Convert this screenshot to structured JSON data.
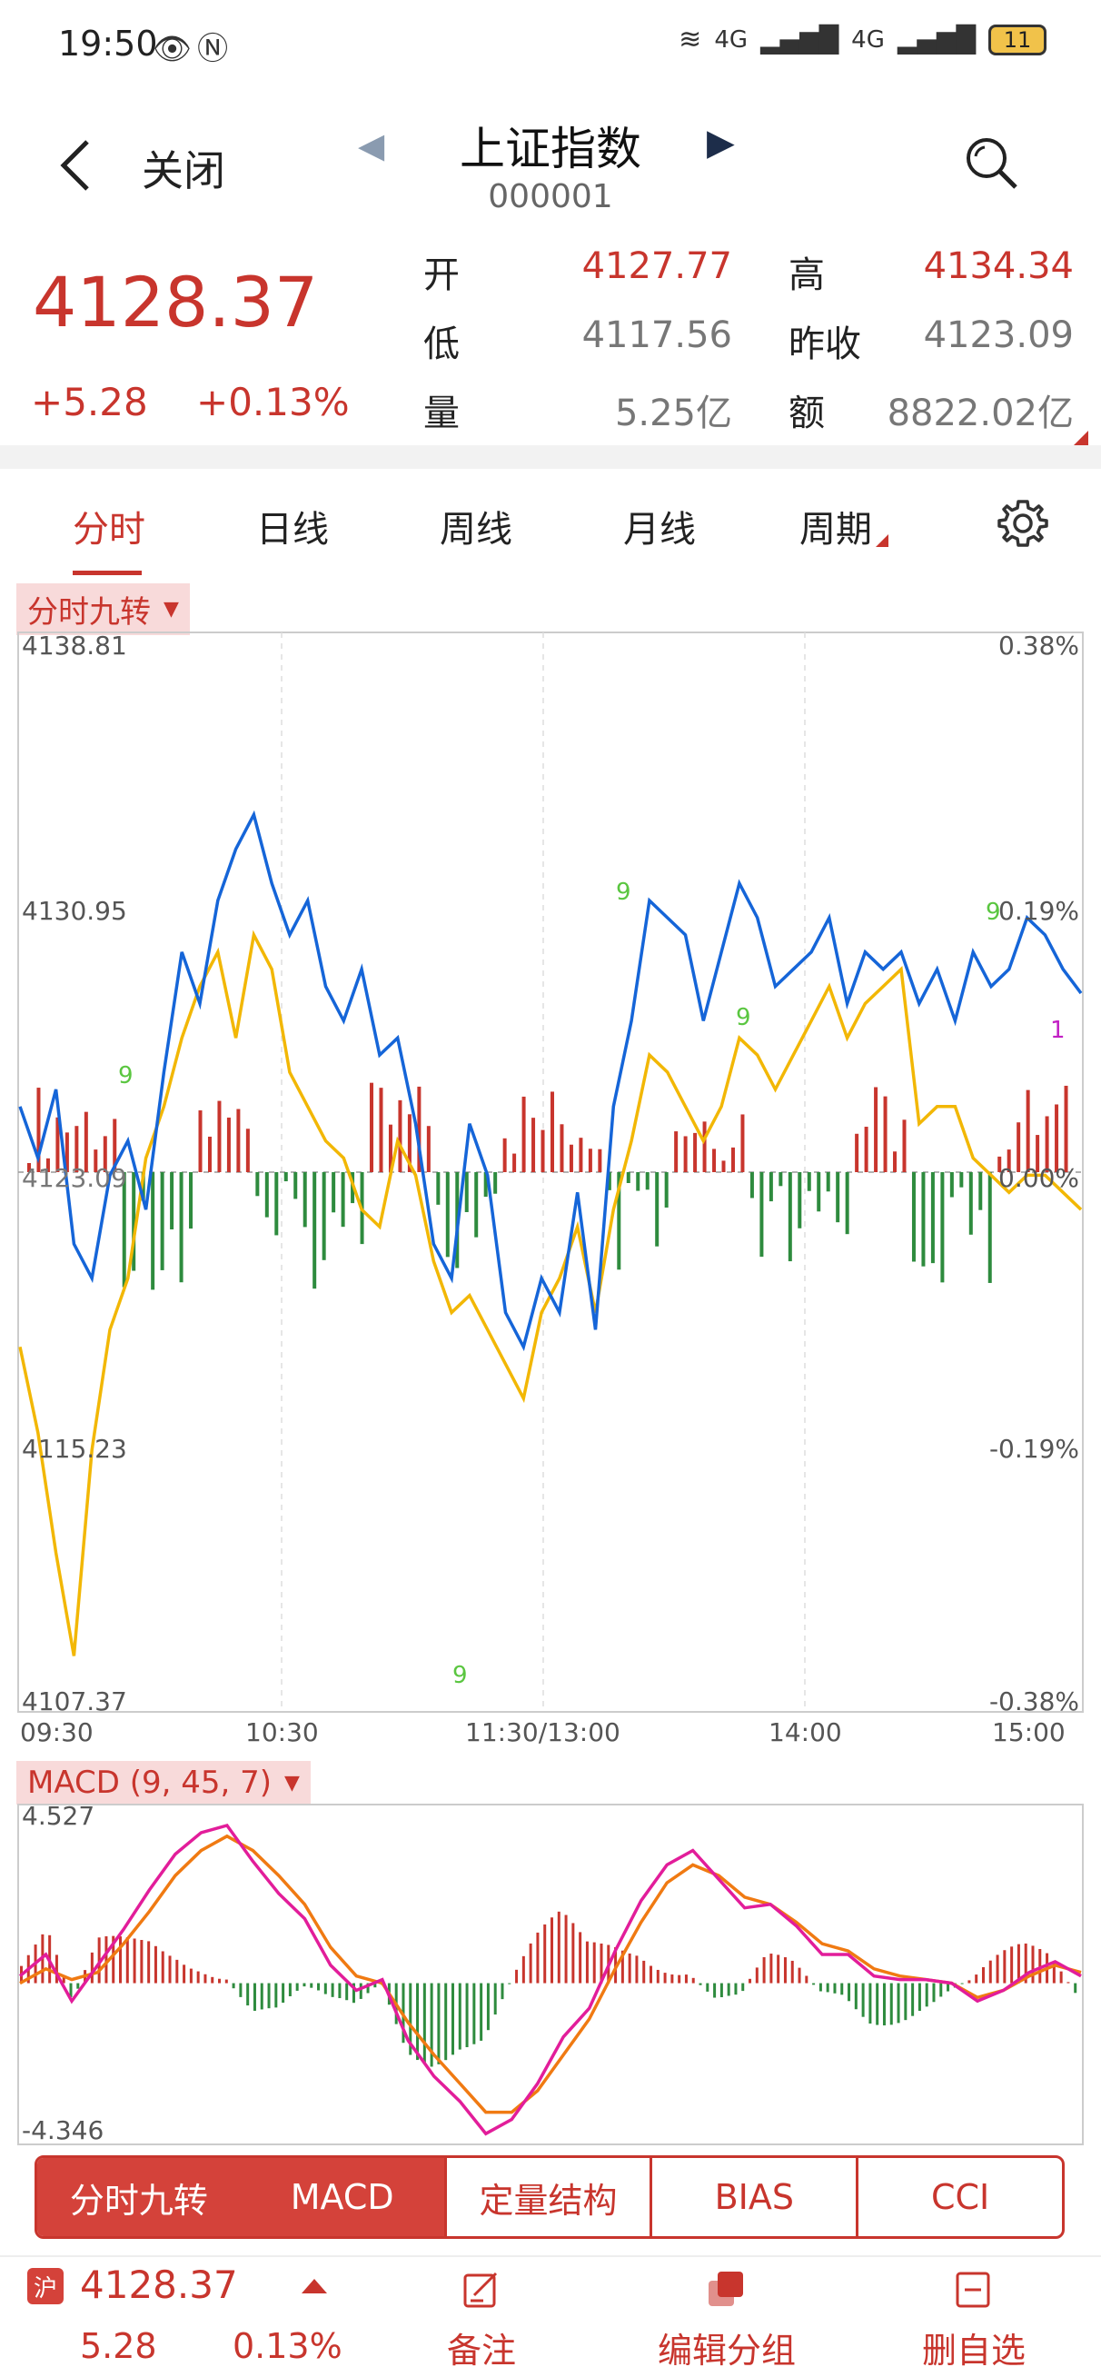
{
  "status_bar": {
    "time": "19:50",
    "battery": "11",
    "net1": "4G",
    "net2": "4G"
  },
  "header": {
    "close_label": "关闭",
    "title": "上证指数",
    "code": "000001"
  },
  "quote": {
    "price": "4128.37",
    "change": "+5.28",
    "change_pct": "+0.13%",
    "rows": [
      {
        "l1": "开",
        "v1": "4127.77",
        "l2": "高",
        "v2": "4134.34"
      },
      {
        "l1": "低",
        "v1": "4117.56",
        "l2": "昨收",
        "v2": "4123.09"
      },
      {
        "l1": "量",
        "v1": "5.25亿",
        "l2": "额",
        "v2": "8822.02亿"
      }
    ]
  },
  "tabs": [
    "分时",
    "日线",
    "周线",
    "月线",
    "周期"
  ],
  "chip_main": "分时九转",
  "chip_macd": "MACD (9, 45, 7)",
  "chart_data": [
    {
      "type": "line",
      "title": "分时",
      "y_left_ticks": [
        "4138.81",
        "4130.95",
        "4123.09",
        "4115.23",
        "4107.37"
      ],
      "y_right_ticks": [
        "0.38%",
        "0.19%",
        "0.00%",
        "-0.19%",
        "-0.38%"
      ],
      "x_ticks": [
        "09:30",
        "10:30",
        "11:30/13:00",
        "14:00",
        "15:00"
      ],
      "ylim": [
        4107.37,
        4138.81
      ],
      "series": [
        {
          "name": "price",
          "color": "#1565d8",
          "values": [
            4125.0,
            4123.5,
            4125.5,
            4121.0,
            4120.0,
            4123.0,
            4124.0,
            4122.0,
            4126.0,
            4129.5,
            4128.0,
            4131.0,
            4132.5,
            4133.5,
            4131.5,
            4130.0,
            4131.0,
            4128.5,
            4127.5,
            4129.0,
            4126.5,
            4127.0,
            4124.5,
            4121.0,
            4120.0,
            4124.5,
            4123.0,
            4119.0,
            4118.0,
            4120.0,
            4119.0,
            4122.5,
            4118.5,
            4125.0,
            4127.5,
            4131.0,
            4130.5,
            4130.0,
            4127.5,
            4129.5,
            4131.5,
            4130.5,
            4128.5,
            4129.0,
            4129.5,
            4130.5,
            4128.0,
            4129.5,
            4129.0,
            4129.5,
            4128.0,
            4129.0,
            4127.5,
            4129.5,
            4128.5,
            4129.0,
            4130.5,
            4130.0,
            4129.0,
            4128.3
          ]
        },
        {
          "name": "avg",
          "color": "#f2b705",
          "values": [
            4118.0,
            4115.5,
            4112.0,
            4109.0,
            4115.0,
            4118.5,
            4120.0,
            4123.5,
            4125.0,
            4127.0,
            4128.5,
            4129.5,
            4127.0,
            4130.0,
            4129.0,
            4126.0,
            4125.0,
            4124.0,
            4123.5,
            4122.0,
            4121.5,
            4124.0,
            4123.0,
            4120.5,
            4119.0,
            4119.5,
            4118.5,
            4117.5,
            4116.5,
            4119.0,
            4120.0,
            4121.5,
            4119.0,
            4122.0,
            4124.0,
            4126.5,
            4126.0,
            4125.0,
            4124.0,
            4125.0,
            4127.0,
            4126.5,
            4125.5,
            4126.5,
            4127.5,
            4128.5,
            4127.0,
            4128.0,
            4128.5,
            4129.0,
            4124.5,
            4125.0,
            4125.0,
            4123.5,
            4123.0,
            4122.5,
            4123.0,
            4123.0,
            4122.5,
            4122.0
          ]
        }
      ]
    },
    {
      "type": "line",
      "title": "MACD (9, 45, 7)",
      "y_ticks": [
        "4.527",
        "-4.346"
      ],
      "ylim": [
        -4.346,
        4.527
      ],
      "series": [
        {
          "name": "DIF",
          "color": "#e21d9a",
          "values": [
            0.2,
            0.8,
            -0.5,
            0.5,
            1.5,
            2.6,
            3.6,
            4.2,
            4.4,
            3.4,
            2.5,
            1.8,
            0.5,
            -0.2,
            0.1,
            -1.6,
            -2.6,
            -3.3,
            -4.2,
            -3.8,
            -2.8,
            -1.5,
            -0.7,
            0.9,
            2.3,
            3.3,
            3.7,
            2.9,
            2.1,
            2.2,
            1.6,
            0.8,
            0.8,
            0.2,
            0.1,
            0.1,
            0.0,
            -0.5,
            -0.2,
            0.3,
            0.6,
            0.2
          ]
        },
        {
          "name": "DEA",
          "color": "#f07a12",
          "values": [
            0.0,
            0.4,
            0.1,
            0.3,
            1.1,
            2.0,
            3.0,
            3.7,
            4.1,
            3.7,
            3.0,
            2.2,
            1.0,
            0.2,
            0.0,
            -1.1,
            -2.0,
            -2.8,
            -3.6,
            -3.6,
            -3.0,
            -2.0,
            -1.0,
            0.4,
            1.7,
            2.8,
            3.3,
            3.0,
            2.4,
            2.2,
            1.7,
            1.1,
            0.9,
            0.4,
            0.2,
            0.1,
            0.0,
            -0.4,
            -0.2,
            0.2,
            0.5,
            0.3
          ]
        }
      ]
    }
  ],
  "indicator_tabs": [
    "分时九转",
    "MACD",
    "定量结构",
    "BIAS",
    "CCI"
  ],
  "marker_nine": "9",
  "marker_one": "1",
  "footer": {
    "badge": "沪",
    "price": "4128.37",
    "change": "5.28",
    "change_pct": "0.13%",
    "actions": [
      "备注",
      "编辑分组",
      "删自选"
    ]
  },
  "colors": {
    "red": "#c8352d",
    "green": "#2e8b3e",
    "blue": "#1565d8",
    "yellow": "#f2b705"
  }
}
